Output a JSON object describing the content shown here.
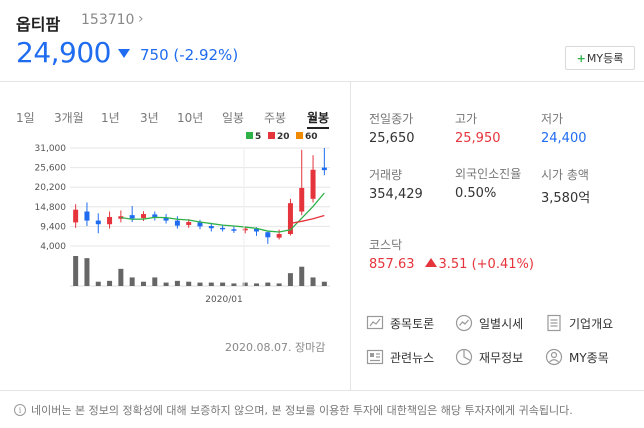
{
  "header": {
    "name": "옵티팜",
    "code": "153710",
    "chevron": "›",
    "price": "24,900",
    "change": "750 (-2.92%)",
    "my_button_plus": "+",
    "my_button_label": "MY등록"
  },
  "periods": [
    "1일",
    "3개월",
    "1년",
    "3년",
    "10년",
    "일봉",
    "주봉",
    "월봉"
  ],
  "active_period": "월봉",
  "chart_data": {
    "type": "candlestick",
    "yticks": [
      "31,000",
      "25,600",
      "20,200",
      "14,800",
      "9,400",
      "4,000"
    ],
    "ylim": [
      4000,
      31000
    ],
    "x_label": "2020/01",
    "legend": [
      {
        "label": "5",
        "color": "#2fb14a"
      },
      {
        "label": "20",
        "color": "#e5343b"
      },
      {
        "label": "60",
        "color": "#f08a00"
      }
    ],
    "candles": [
      {
        "o": 10500,
        "c": 14000,
        "h": 15500,
        "l": 9000
      },
      {
        "o": 13500,
        "c": 11000,
        "h": 16000,
        "l": 9500
      },
      {
        "o": 11000,
        "c": 10000,
        "h": 13000,
        "l": 7500
      },
      {
        "o": 10000,
        "c": 12000,
        "h": 13500,
        "l": 8800
      },
      {
        "o": 11500,
        "c": 12200,
        "h": 13800,
        "l": 10500
      },
      {
        "o": 12500,
        "c": 11600,
        "h": 15000,
        "l": 10600
      },
      {
        "o": 11700,
        "c": 12800,
        "h": 13600,
        "l": 10900
      },
      {
        "o": 12700,
        "c": 11800,
        "h": 13500,
        "l": 11000
      },
      {
        "o": 11800,
        "c": 11000,
        "h": 12800,
        "l": 10200
      },
      {
        "o": 11000,
        "c": 9600,
        "h": 12200,
        "l": 8800
      },
      {
        "o": 9800,
        "c": 10600,
        "h": 11400,
        "l": 9000
      },
      {
        "o": 10500,
        "c": 9400,
        "h": 11200,
        "l": 8600
      },
      {
        "o": 9500,
        "c": 8900,
        "h": 10200,
        "l": 8000
      },
      {
        "o": 9000,
        "c": 8600,
        "h": 9800,
        "l": 8000
      },
      {
        "o": 8600,
        "c": 8200,
        "h": 9400,
        "l": 7600
      },
      {
        "o": 8300,
        "c": 8800,
        "h": 9300,
        "l": 7500
      },
      {
        "o": 8700,
        "c": 8000,
        "h": 9200,
        "l": 6800
      },
      {
        "o": 7800,
        "c": 6400,
        "h": 8200,
        "l": 4600
      },
      {
        "o": 6300,
        "c": 7300,
        "h": 8500,
        "l": 5800
      },
      {
        "o": 7300,
        "c": 15800,
        "h": 17000,
        "l": 6900
      },
      {
        "o": 13500,
        "c": 20000,
        "h": 30500,
        "l": 12500
      },
      {
        "o": 17000,
        "c": 25000,
        "h": 29000,
        "l": 16000
      },
      {
        "o": 25600,
        "c": 24900,
        "h": 31000,
        "l": 23500
      }
    ],
    "ma5": [
      null,
      null,
      null,
      null,
      11840,
      11360,
      11420,
      11880,
      11820,
      11360,
      11160,
      10620,
      10180,
      9760,
      9520,
      9220,
      8860,
      8120,
      7860,
      8460,
      11660,
      14900,
      18600
    ],
    "ma20": [
      null,
      null,
      null,
      null,
      null,
      null,
      null,
      null,
      null,
      null,
      null,
      null,
      null,
      null,
      null,
      null,
      null,
      null,
      null,
      10240,
      10800,
      11500,
      12400
    ],
    "volume": [
      70,
      65,
      10,
      12,
      40,
      20,
      10,
      20,
      8,
      12,
      10,
      8,
      8,
      8,
      6,
      8,
      6,
      8,
      6,
      30,
      45,
      20,
      10
    ]
  },
  "date_stamp": "2020.08.07. 장마감",
  "info": {
    "prev_close_label": "전일종가",
    "prev_close": "25,650",
    "high_label": "고가",
    "high": "25,950",
    "low_label": "저가",
    "low": "24,400",
    "volume_label": "거래량",
    "volume": "354,429",
    "foreign_label": "외국인소진율",
    "foreign": "0.50%",
    "mcap_label": "시가 총액",
    "mcap": "3,580억"
  },
  "kosdaq": {
    "label": "코스닥",
    "value": "857.63",
    "change": "3.51 (+0.41%)"
  },
  "links": {
    "discussion": "종목토론",
    "daily_price": "일별시세",
    "company": "기업개요",
    "news": "관련뉴스",
    "financial": "재무정보",
    "my_stock": "MY종목"
  },
  "disclaimer": "네이버는 본 정보의 정확성에 대해 보증하지 않으며, 본 정보를 이용한 투자에 대한책임은 해당 투자자에게 귀속됩니다.",
  "colors": {
    "up": "#e5343b",
    "down": "#1f6cf0"
  }
}
